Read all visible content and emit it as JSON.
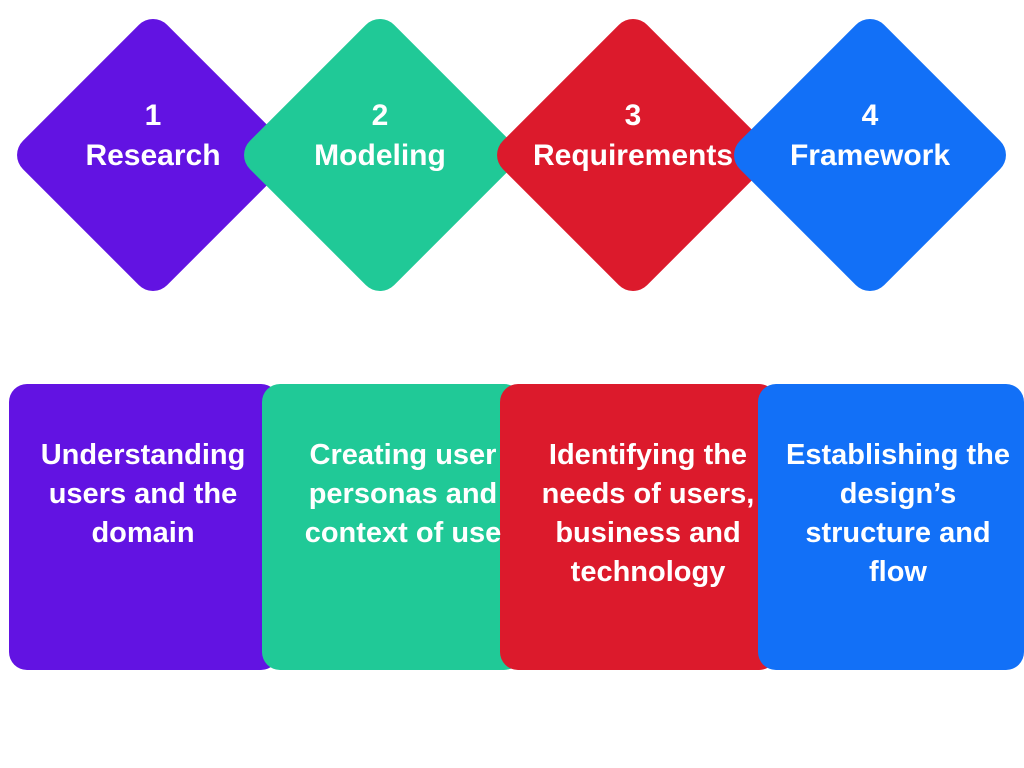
{
  "colors": {
    "research": "#6213E2",
    "modeling": "#20C997",
    "requirements": "#DC1A2C",
    "framework": "#1270F7"
  },
  "steps": [
    {
      "number": "1",
      "title": "Research",
      "description": "Understanding users and the domain"
    },
    {
      "number": "2",
      "title": "Modeling",
      "description": "Creating user personas and context of use"
    },
    {
      "number": "3",
      "title": "Requirements",
      "description": "Identifying the needs of users, business and technology"
    },
    {
      "number": "4",
      "title": "Framework",
      "description": "Establishing the design’s structure and flow"
    }
  ]
}
